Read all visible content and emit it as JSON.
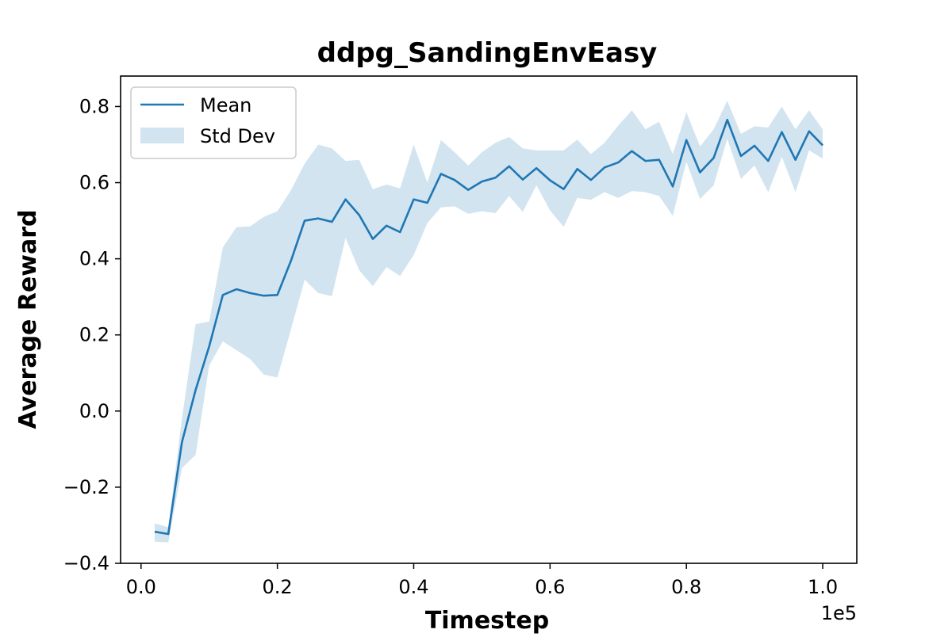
{
  "chart_data": {
    "type": "line",
    "title": "ddpg_SandingEnvEasy",
    "xlabel": "Timestep",
    "ylabel": "Average Reward",
    "x_offset_label": "1e5",
    "xlim": [
      -0.03,
      1.05
    ],
    "ylim": [
      -0.4,
      0.88
    ],
    "x_ticks": [
      0.0,
      0.2,
      0.4,
      0.6,
      0.8,
      1.0
    ],
    "x_tick_labels": [
      "0.0",
      "0.2",
      "0.4",
      "0.6",
      "0.8",
      "1.0"
    ],
    "y_ticks": [
      -0.4,
      -0.2,
      0.0,
      0.2,
      0.4,
      0.6,
      0.8
    ],
    "y_tick_labels": [
      "−0.4",
      "−0.2",
      "0.0",
      "0.2",
      "0.4",
      "0.6",
      "0.8"
    ],
    "grid": false,
    "legend_position": "upper-left",
    "series": [
      {
        "name": "Mean",
        "color": "#1f77b4",
        "x": [
          0.02,
          0.04,
          0.06,
          0.08,
          0.1,
          0.12,
          0.14,
          0.16,
          0.18,
          0.2,
          0.22,
          0.24,
          0.26,
          0.28,
          0.3,
          0.32,
          0.34,
          0.36,
          0.38,
          0.4,
          0.42,
          0.44,
          0.46,
          0.48,
          0.5,
          0.52,
          0.54,
          0.56,
          0.58,
          0.6,
          0.62,
          0.64,
          0.66,
          0.68,
          0.7,
          0.72,
          0.74,
          0.76,
          0.78,
          0.8,
          0.82,
          0.84,
          0.86,
          0.88,
          0.9,
          0.92,
          0.94,
          0.96,
          0.98,
          1.0
        ],
        "y": [
          -0.317,
          -0.323,
          -0.082,
          0.055,
          0.17,
          0.305,
          0.32,
          0.31,
          0.303,
          0.305,
          0.395,
          0.5,
          0.506,
          0.497,
          0.556,
          0.515,
          0.452,
          0.487,
          0.47,
          0.556,
          0.547,
          0.623,
          0.607,
          0.581,
          0.603,
          0.613,
          0.643,
          0.608,
          0.638,
          0.606,
          0.583,
          0.636,
          0.607,
          0.64,
          0.653,
          0.683,
          0.657,
          0.66,
          0.59,
          0.712,
          0.627,
          0.665,
          0.765,
          0.67,
          0.697,
          0.657,
          0.733,
          0.66,
          0.735,
          0.698
        ]
      }
    ],
    "std_band": {
      "name": "Std Dev",
      "color": "#1f77b4",
      "opacity": 0.2,
      "upper": [
        -0.295,
        -0.305,
        -0.02,
        0.228,
        0.235,
        0.43,
        0.483,
        0.485,
        0.51,
        0.525,
        0.58,
        0.65,
        0.7,
        0.69,
        0.657,
        0.66,
        0.583,
        0.595,
        0.585,
        0.7,
        0.6,
        0.712,
        0.68,
        0.645,
        0.68,
        0.705,
        0.72,
        0.69,
        0.685,
        0.685,
        0.685,
        0.713,
        0.675,
        0.705,
        0.75,
        0.79,
        0.74,
        0.76,
        0.675,
        0.785,
        0.695,
        0.74,
        0.815,
        0.728,
        0.748,
        0.745,
        0.8,
        0.74,
        0.79,
        0.74
      ],
      "lower": [
        -0.343,
        -0.345,
        -0.15,
        -0.115,
        0.12,
        0.183,
        0.16,
        0.137,
        0.096,
        0.088,
        0.215,
        0.345,
        0.31,
        0.302,
        0.455,
        0.37,
        0.328,
        0.378,
        0.355,
        0.41,
        0.494,
        0.535,
        0.538,
        0.518,
        0.525,
        0.52,
        0.565,
        0.523,
        0.593,
        0.527,
        0.484,
        0.56,
        0.555,
        0.575,
        0.56,
        0.578,
        0.575,
        0.565,
        0.513,
        0.655,
        0.557,
        0.593,
        0.715,
        0.61,
        0.645,
        0.575,
        0.668,
        0.575,
        0.685,
        0.663
      ]
    }
  }
}
